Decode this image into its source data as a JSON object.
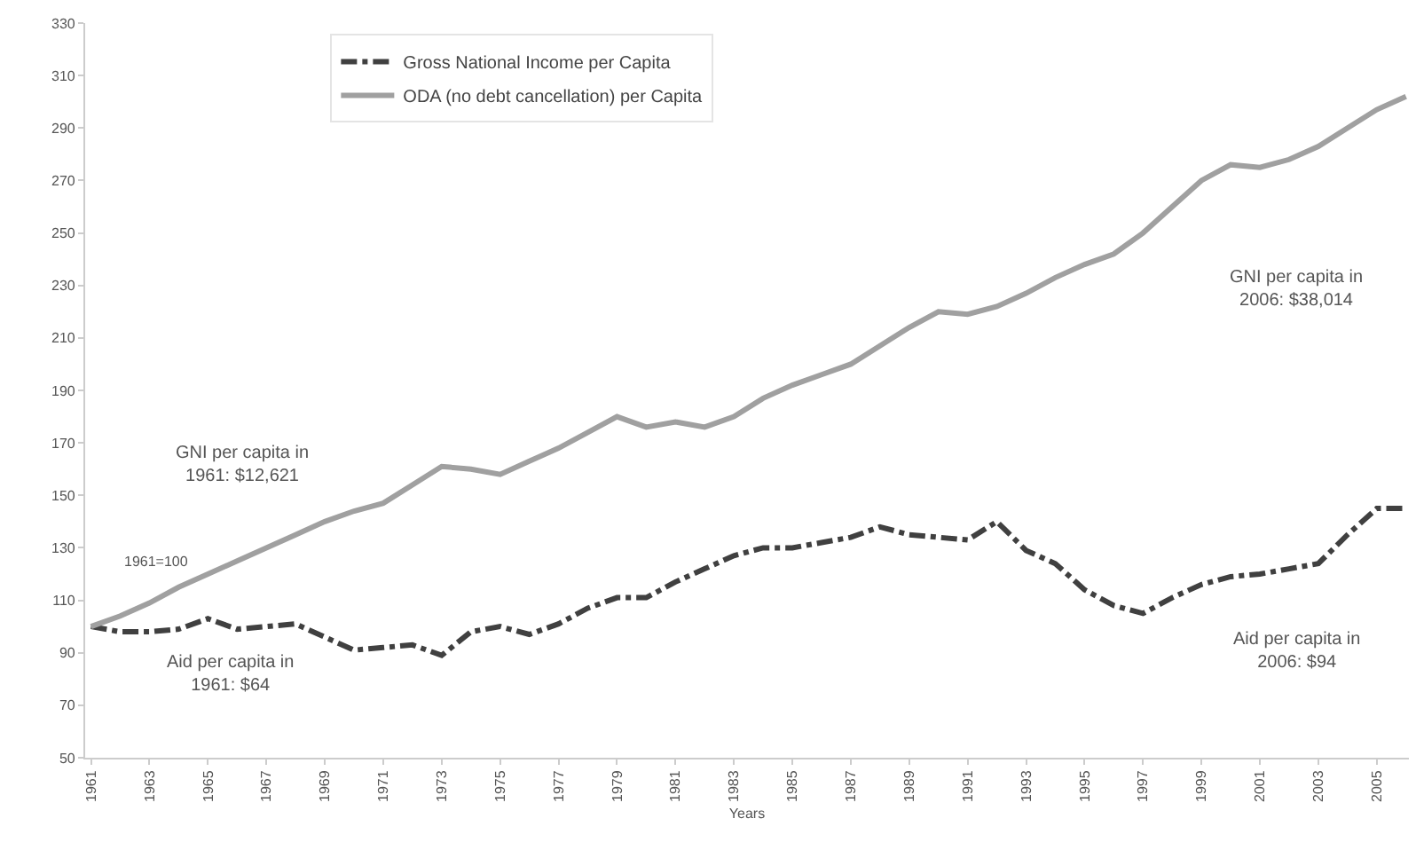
{
  "chart_data": {
    "type": "line",
    "xlabel": "Years",
    "x": [
      1961,
      1962,
      1963,
      1964,
      1965,
      1966,
      1967,
      1968,
      1969,
      1970,
      1971,
      1972,
      1973,
      1974,
      1975,
      1976,
      1977,
      1978,
      1979,
      1980,
      1981,
      1982,
      1983,
      1984,
      1985,
      1986,
      1987,
      1988,
      1989,
      1990,
      1991,
      1992,
      1993,
      1994,
      1995,
      1996,
      1997,
      1998,
      1999,
      2000,
      2001,
      2002,
      2003,
      2004,
      2005,
      2006
    ],
    "series": [
      {
        "name": "Gross National Income per Capita",
        "color": "#404040",
        "line_style": "dashed",
        "values": [
          100,
          98,
          98,
          99,
          103,
          99,
          100,
          101,
          96,
          91,
          92,
          93,
          89,
          98,
          100,
          97,
          101,
          107,
          111,
          111,
          117,
          122,
          127,
          130,
          130,
          132,
          134,
          138,
          135,
          134,
          133,
          140,
          129,
          124,
          114,
          108,
          105,
          111,
          116,
          119,
          120,
          122,
          124,
          135,
          145,
          145
        ]
      },
      {
        "name": "ODA (no debt cancellation) per Capita",
        "color": "#a0a0a0",
        "line_style": "solid",
        "values": [
          100,
          104,
          109,
          115,
          120,
          125,
          130,
          135,
          140,
          144,
          147,
          154,
          161,
          160,
          158,
          163,
          168,
          174,
          180,
          176,
          178,
          176,
          180,
          187,
          192,
          196,
          200,
          207,
          214,
          220,
          219,
          222,
          227,
          233,
          238,
          242,
          250,
          260,
          270,
          276,
          275,
          278,
          283,
          290,
          297,
          302
        ]
      }
    ],
    "xlim": [
      1960.8,
      2006.1
    ],
    "xticks": [
      1961,
      1963,
      1965,
      1967,
      1969,
      1971,
      1973,
      1975,
      1977,
      1979,
      1981,
      1983,
      1985,
      1987,
      1989,
      1991,
      1993,
      1995,
      1997,
      1999,
      2001,
      2003,
      2005
    ],
    "ylim": [
      50,
      330
    ],
    "yticks": [
      50,
      70,
      90,
      110,
      130,
      150,
      170,
      190,
      210,
      230,
      250,
      270,
      290,
      310,
      330
    ],
    "grid": false,
    "legend": "top",
    "marker": "none",
    "annotations": [
      "GNI per capita in\n1961: $12,621",
      "1961=100",
      "Aid per capita in\n1961: $64",
      "GNI per capita in\n2006: $38,014",
      "Aid per capita in\n2006: $94"
    ]
  }
}
